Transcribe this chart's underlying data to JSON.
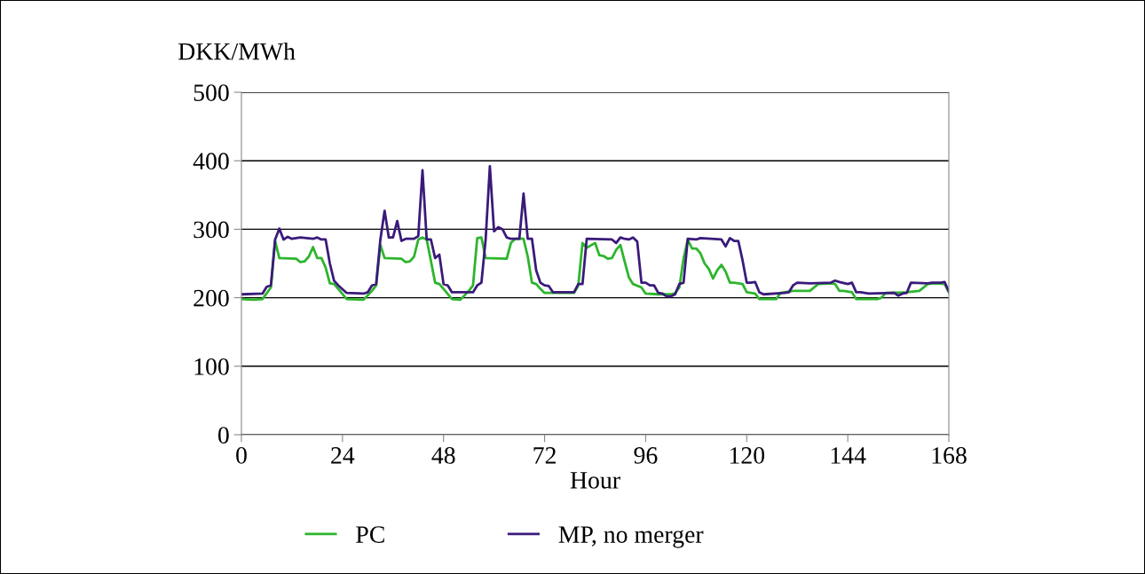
{
  "chart_data": {
    "type": "line",
    "ylabel": "DKK/MWh",
    "xlabel": "Hour",
    "xlim": [
      0,
      168
    ],
    "xticks": [
      0,
      24,
      48,
      72,
      96,
      120,
      144,
      168
    ],
    "ylim": [
      0,
      500
    ],
    "yticks": [
      0,
      100,
      200,
      300,
      400,
      500
    ],
    "grid": "y",
    "legend": "bottom",
    "marker": "none",
    "line_style": "solid",
    "series": [
      {
        "name": "PC",
        "color": "#2db52d",
        "x": [
          0,
          3,
          5,
          7,
          8,
          9,
          13,
          14,
          15,
          16,
          17,
          18,
          19,
          20,
          21,
          22,
          23,
          25,
          29,
          31,
          32,
          33,
          34,
          38,
          39,
          40,
          41,
          42,
          43,
          44,
          45,
          46,
          47,
          48,
          50,
          52,
          54,
          55,
          56,
          57,
          58,
          63,
          64,
          65,
          67,
          68,
          69,
          70,
          71,
          72,
          79,
          80,
          81,
          82,
          84,
          85,
          86,
          87,
          88,
          89,
          90,
          91,
          92,
          93,
          95,
          96,
          99,
          102,
          103,
          104,
          105,
          106,
          107,
          108,
          109,
          110,
          111,
          112,
          113,
          114,
          115,
          116,
          117,
          119,
          120,
          122,
          123,
          127,
          128,
          129,
          131,
          135,
          137,
          140,
          141,
          142,
          143,
          145,
          146,
          151,
          152,
          153,
          158,
          161,
          163,
          165,
          167,
          168
        ],
        "values": [
          198,
          197,
          198,
          215,
          283,
          258,
          257,
          252,
          253,
          260,
          274,
          258,
          258,
          244,
          221,
          220,
          213,
          198,
          197,
          210,
          218,
          277,
          258,
          257,
          252,
          253,
          260,
          285,
          288,
          285,
          254,
          222,
          220,
          213,
          198,
          197,
          210,
          218,
          287,
          288,
          258,
          257,
          280,
          286,
          286,
          260,
          222,
          220,
          213,
          207,
          207,
          218,
          280,
          273,
          280,
          262,
          261,
          257,
          258,
          270,
          277,
          253,
          230,
          220,
          215,
          206,
          205,
          205,
          207,
          215,
          257,
          285,
          272,
          272,
          265,
          250,
          242,
          228,
          240,
          248,
          238,
          222,
          222,
          220,
          208,
          206,
          198,
          198,
          207,
          208,
          210,
          210,
          220,
          221,
          220,
          210,
          210,
          208,
          198,
          198,
          200,
          207,
          208,
          210,
          220,
          221,
          220,
          208
        ]
      },
      {
        "name": "MP, no merger",
        "color": "#3a1a7a",
        "x": [
          0,
          5,
          6,
          7,
          8,
          9,
          10,
          11,
          12,
          14,
          17,
          18,
          19,
          20,
          21,
          22,
          23,
          25,
          29,
          30,
          31,
          32,
          33,
          34,
          35,
          36,
          37,
          38,
          39,
          41,
          42,
          43,
          44,
          45,
          46,
          47,
          48,
          49,
          50,
          55,
          56,
          57,
          58,
          59,
          60,
          61,
          62,
          63,
          64,
          66,
          67,
          68,
          69,
          70,
          71,
          72,
          73,
          74,
          79,
          80,
          81,
          82,
          88,
          89,
          90,
          91,
          92,
          93,
          94,
          95,
          96,
          97,
          98,
          99,
          100,
          101,
          102,
          103,
          104,
          105,
          106,
          108,
          109,
          114,
          115,
          116,
          117,
          118,
          119,
          120,
          121,
          122,
          123,
          124,
          129,
          130,
          131,
          132,
          135,
          140,
          141,
          142,
          144,
          145,
          146,
          147,
          149,
          155,
          156,
          157,
          158,
          159,
          163,
          164,
          166,
          167,
          168
        ],
        "values": [
          205,
          206,
          216,
          218,
          285,
          301,
          285,
          289,
          286,
          288,
          286,
          288,
          285,
          285,
          250,
          225,
          218,
          207,
          206,
          208,
          218,
          220,
          285,
          327,
          288,
          288,
          312,
          283,
          286,
          286,
          290,
          386,
          285,
          285,
          258,
          263,
          220,
          218,
          208,
          208,
          218,
          222,
          285,
          392,
          297,
          303,
          300,
          288,
          286,
          286,
          352,
          286,
          286,
          240,
          222,
          218,
          217,
          208,
          208,
          220,
          220,
          286,
          285,
          280,
          288,
          286,
          285,
          288,
          282,
          222,
          222,
          218,
          218,
          207,
          206,
          202,
          202,
          205,
          220,
          222,
          286,
          285,
          287,
          285,
          275,
          287,
          283,
          283,
          255,
          222,
          222,
          223,
          208,
          205,
          207,
          208,
          218,
          222,
          221,
          222,
          225,
          223,
          220,
          222,
          208,
          208,
          206,
          207,
          203,
          206,
          207,
          222,
          221,
          222,
          222,
          223,
          209
        ]
      }
    ]
  }
}
